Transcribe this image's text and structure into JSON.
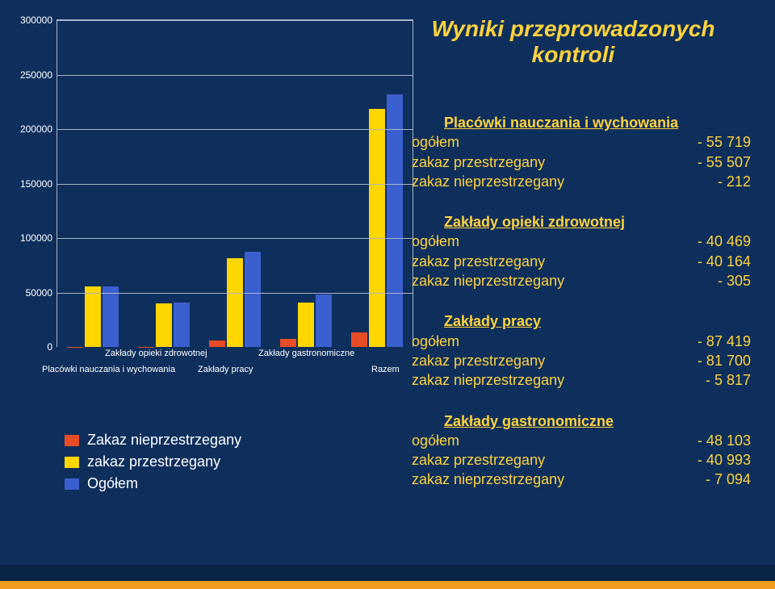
{
  "page": {
    "background_color": "#0e2f5c",
    "text_color": "#ffd23d"
  },
  "title": {
    "line1": "Wyniki przeprowadzonych",
    "line2": "kontroli",
    "fontsize": 28,
    "color": "#ffd23d"
  },
  "chart": {
    "type": "bar",
    "ylim_max": 300000,
    "ytick_step": 50000,
    "plot_border_color": "#aab4c4",
    "grid_color": "#aab4c4",
    "ylabels": [
      "0",
      "50000",
      "100000",
      "150000",
      "200000",
      "250000",
      "300000"
    ],
    "series_colors": {
      "nieprzestrzegany": "#e84c26",
      "przestrzegany": "#ffd600",
      "ogolem": "#3a5fcf"
    },
    "categories": [
      {
        "label": "Placówki nauczania i wychowania",
        "nieprzestrzegany": 212,
        "przestrzegany": 55507,
        "ogolem": 55719,
        "xoffset": -18,
        "xtop": 22
      },
      {
        "label": "Zakłady opieki zdrowotnej",
        "nieprzestrzegany": 305,
        "przestrzegany": 40164,
        "ogolem": 40469,
        "xoffset": 60,
        "xtop": 2
      },
      {
        "label": "Zakłady pracy",
        "nieprzestrzegany": 5817,
        "przestrzegany": 81700,
        "ogolem": 87419,
        "xoffset": 175,
        "xtop": 22
      },
      {
        "label": "Zakłady gastronomiczne",
        "nieprzestrzegany": 7094,
        "przestrzegany": 40993,
        "ogolem": 48103,
        "xoffset": 250,
        "xtop": 2
      },
      {
        "label": "Razem",
        "nieprzestrzegany": 13428,
        "przestrzegany": 218364,
        "ogolem": 231710,
        "xoffset": 390,
        "xtop": 22
      }
    ]
  },
  "legend": {
    "items": [
      {
        "label": "Zakaz nieprzestrzegany",
        "color_key": "nieprzestrzegany"
      },
      {
        "label": "zakaz przestrzegany",
        "color_key": "przestrzegany"
      },
      {
        "label": "Ogółem",
        "color_key": "ogolem"
      }
    ]
  },
  "sections": [
    {
      "title": "Placówki nauczania i wychowania",
      "rows": [
        {
          "label": "ogółem",
          "value": "- 55 719"
        },
        {
          "label": "zakaz przestrzegany",
          "value": "- 55 507"
        },
        {
          "label": "zakaz nieprzestrzegany",
          "value": "- 212"
        }
      ]
    },
    {
      "title": "Zakłady opieki zdrowotnej",
      "rows": [
        {
          "label": "ogółem",
          "value": "- 40 469"
        },
        {
          "label": "zakaz przestrzegany",
          "value": "- 40 164"
        },
        {
          "label": "zakaz nieprzestrzegany",
          "value": "- 305"
        }
      ]
    },
    {
      "title": "Zakłady pracy",
      "rows": [
        {
          "label": "ogółem",
          "value": "- 87 419"
        },
        {
          "label": "zakaz przestrzegany",
          "value": "- 81 700"
        },
        {
          "label": "zakaz nieprzestrzegany",
          "value": "- 5 817"
        }
      ]
    },
    {
      "title": "Zakłady gastronomiczne",
      "rows": [
        {
          "label": "ogółem",
          "value": "- 48 103"
        },
        {
          "label": "zakaz przestrzegany",
          "value": "- 40 993"
        },
        {
          "label": "zakaz nieprzestrzegany",
          "value": "- 7 094"
        }
      ]
    }
  ],
  "footer": {
    "strip1_color": "#0a2445",
    "strip2_color": "#f29c1f"
  }
}
